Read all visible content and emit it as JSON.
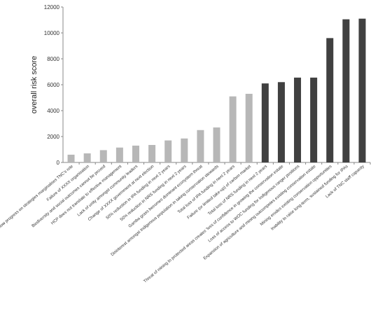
{
  "chart_data": {
    "type": "bar",
    "title": "",
    "xlabel": "",
    "ylabel": "overall risk score",
    "ylim": [
      0,
      12000
    ],
    "y_ticks": [
      0,
      2000,
      4000,
      6000,
      8000,
      10000,
      12000
    ],
    "grid": false,
    "legend": "none",
    "colors": {
      "light": "#b7b7b7",
      "dark": "#404040",
      "axis": "#888888"
    },
    "categories": [
      "Slow progress on strategies marginalises TNC's role",
      "Failure of XXXX organisation",
      "Biodiversity and social outcomes cannot be proved",
      "HCP does not translate to effective management",
      "Lack of unity amongst community leaders",
      "Change of XXXX government at next election",
      "50% reduction in IPA funding in next 2 years",
      "50% reduction in NRS funding in next 2 years",
      "Gamba grass becomes dominant ecosystem threat",
      "Disinterest amongst Indigenous population in taking conservation stewards",
      "Total loss of IPA funding in next 2 years",
      "Failure (or limited take-up) of carbon market",
      "Total loss of NRS funding in next 2 years",
      "Threat of mining to protected areas creates 'loss of confidence in growing the conservation estate",
      "Loss of access to WOC funding for Indigenous ranger positions",
      "Expansion of agriculture and mining outcompetes existing conservation estate",
      "Mining erodes existing conservation opportunities",
      "Inability to raise long-term, sustained funding for IPAs",
      "Lack of TNC staff capacity"
    ],
    "values": [
      600,
      700,
      950,
      1150,
      1300,
      1350,
      1700,
      1850,
      2500,
      2700,
      5100,
      5300,
      6100,
      6200,
      6550,
      6550,
      9600,
      11050,
      11100
    ],
    "bar_shades": [
      "light",
      "light",
      "light",
      "light",
      "light",
      "light",
      "light",
      "light",
      "light",
      "light",
      "light",
      "light",
      "dark",
      "dark",
      "dark",
      "dark",
      "dark",
      "dark",
      "dark"
    ]
  }
}
